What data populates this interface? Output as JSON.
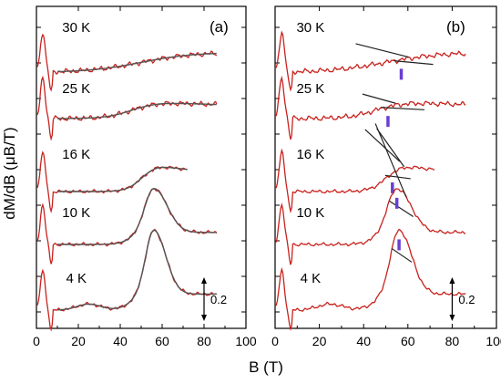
{
  "chart_data": [
    {
      "panel_label": "(a)",
      "type": "line",
      "xlabel": "B (T)",
      "ylabel": "dM/dB (μB/T)",
      "xlim": [
        0,
        100
      ],
      "xticks": [
        0,
        20,
        40,
        60,
        80,
        100
      ],
      "scale_bar": {
        "label": "0.2",
        "value": 0.2,
        "x": 80
      },
      "series": [
        {
          "name": "30 K",
          "x_max": 86,
          "offset": 4.0,
          "peak": null
        },
        {
          "name": "25 K",
          "x_max": 86,
          "offset": 3.0,
          "peak": 52
        },
        {
          "name": "16 K",
          "x_max": 72,
          "offset": 2.0,
          "peak": 55
        },
        {
          "name": "10 K",
          "x_max": 86,
          "offset": 1.0,
          "peak": 56
        },
        {
          "name": "4 K",
          "x_max": 86,
          "offset": 0.0,
          "peak": 56
        }
      ]
    },
    {
      "panel_label": "(b)",
      "type": "line",
      "xlabel": "B (T)",
      "xlim": [
        0,
        100
      ],
      "xticks": [
        0,
        20,
        40,
        60,
        80,
        100
      ],
      "scale_bar": {
        "label": "0.2",
        "value": 0.2,
        "x": 80
      },
      "series": [
        {
          "name": "30 K",
          "x_max": 86,
          "offset": 4.0,
          "marker_B": 57
        },
        {
          "name": "25 K",
          "x_max": 86,
          "offset": 3.0,
          "marker_B": 51
        },
        {
          "name": "16 K",
          "x_max": 72,
          "offset": 2.0,
          "marker_B": 53
        },
        {
          "name": "10 K",
          "x_max": 86,
          "offset": 1.0,
          "marker_B": 55
        },
        {
          "name": "4 K",
          "x_max": 86,
          "offset": 0.0,
          "marker_B": 56
        }
      ],
      "marker_color": "#6a3fd3"
    }
  ],
  "colors": {
    "data": "#c8221d",
    "fit": "#555555",
    "tangent": "#222222",
    "marker": "#6a3fd3"
  }
}
